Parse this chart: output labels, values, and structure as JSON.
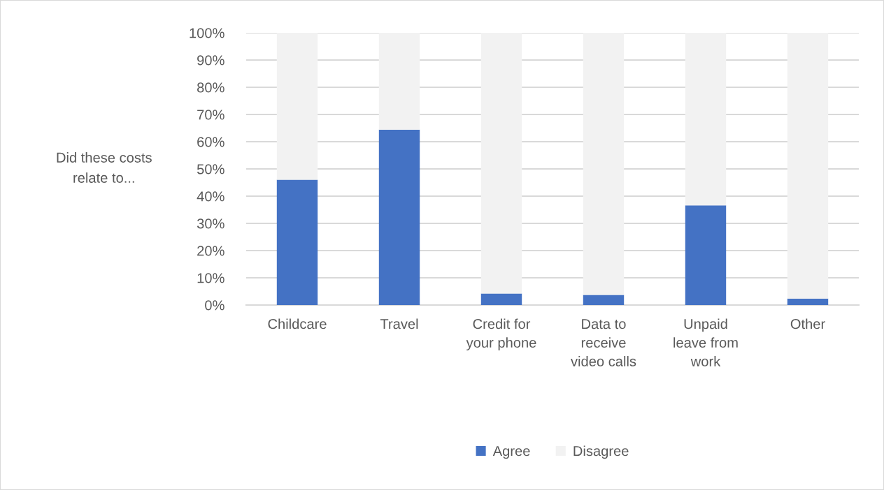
{
  "chart_data": {
    "type": "bar",
    "stacked": true,
    "ylabel": "Did these costs\nrelate to...",
    "categories": [
      "Childcare",
      "Travel",
      "Credit for\nyour phone",
      "Data to\nreceive\nvideo calls",
      "Unpaid\nleave from\nwork",
      "Other"
    ],
    "series": [
      {
        "name": "Agree",
        "color": "#4472c4",
        "values": [
          46.0,
          64.4,
          4.2,
          3.7,
          36.6,
          2.4
        ]
      },
      {
        "name": "Disagree",
        "color": "#f2f2f2",
        "values": [
          54.0,
          35.6,
          95.8,
          96.3,
          63.4,
          97.6
        ]
      }
    ],
    "ylim": [
      0,
      100
    ],
    "yticks": [
      {
        "value": 0,
        "label": "0%"
      },
      {
        "value": 10,
        "label": "10%"
      },
      {
        "value": 20,
        "label": "20%"
      },
      {
        "value": 30,
        "label": "30%"
      },
      {
        "value": 40,
        "label": "40%"
      },
      {
        "value": 50,
        "label": "50%"
      },
      {
        "value": 60,
        "label": "60%"
      },
      {
        "value": 70,
        "label": "70%"
      },
      {
        "value": 80,
        "label": "80%"
      },
      {
        "value": 90,
        "label": "90%"
      },
      {
        "value": 100,
        "label": "100%"
      }
    ],
    "grid": "y",
    "legend": "bottom"
  }
}
